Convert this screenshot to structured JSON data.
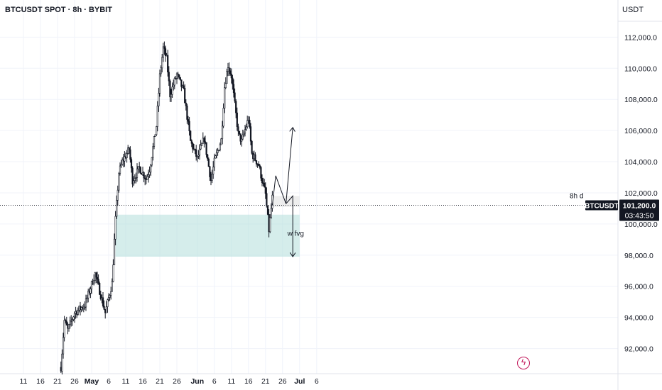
{
  "header": {
    "title": "BTCUSDT SPOT · 8h · BYBIT",
    "currency": "USDT"
  },
  "chart_data": {
    "type": "candlestick",
    "symbol": "BTCUSDT",
    "timeframe": "8h",
    "exchange": "BYBIT",
    "ylim": [
      90500,
      113000
    ],
    "y_ticks": [
      92000,
      94000,
      96000,
      98000,
      100000,
      102000,
      104000,
      106000,
      108000,
      110000,
      112000
    ],
    "y_tick_labels": [
      "92,000.0",
      "94,000.0",
      "96,000.0",
      "98,000.0",
      "100,000.0",
      "102,000.0",
      "104,000.0",
      "106,000.0",
      "108,000.0",
      "110,000.0",
      "112,000.0"
    ],
    "x_ticks": [
      {
        "label": "11",
        "date": "2025-04-11"
      },
      {
        "label": "16",
        "date": "2025-04-16"
      },
      {
        "label": "21",
        "date": "2025-04-21"
      },
      {
        "label": "26",
        "date": "2025-04-26"
      },
      {
        "label": "May",
        "date": "2025-05-01",
        "bold": true
      },
      {
        "label": "6",
        "date": "2025-05-06"
      },
      {
        "label": "11",
        "date": "2025-05-11"
      },
      {
        "label": "16",
        "date": "2025-05-16"
      },
      {
        "label": "21",
        "date": "2025-05-21"
      },
      {
        "label": "26",
        "date": "2025-05-26"
      },
      {
        "label": "Jun",
        "date": "2025-06-01",
        "bold": true
      },
      {
        "label": "6",
        "date": "2025-06-06"
      },
      {
        "label": "11",
        "date": "2025-06-11"
      },
      {
        "label": "16",
        "date": "2025-06-16"
      },
      {
        "label": "21",
        "date": "2025-06-21"
      },
      {
        "label": "26",
        "date": "2025-06-26"
      },
      {
        "label": "Jul",
        "date": "2025-07-01",
        "bold": true
      },
      {
        "label": "6",
        "date": "2025-07-06"
      }
    ],
    "price_path": [
      [
        "2025-04-22",
        90800
      ],
      [
        "2025-04-23",
        93800
      ],
      [
        "2025-04-24",
        93200
      ],
      [
        "2025-04-26",
        94300
      ],
      [
        "2025-04-29",
        94800
      ],
      [
        "2025-05-02",
        96800
      ],
      [
        "2025-05-03",
        96000
      ],
      [
        "2025-05-05",
        94300
      ],
      [
        "2025-05-07",
        96200
      ],
      [
        "2025-05-08",
        100300
      ],
      [
        "2025-05-09",
        103300
      ],
      [
        "2025-05-10",
        104000
      ],
      [
        "2025-05-12",
        104800
      ],
      [
        "2025-05-13",
        102800
      ],
      [
        "2025-05-15",
        103600
      ],
      [
        "2025-05-17",
        102900
      ],
      [
        "2025-05-18",
        103500
      ],
      [
        "2025-05-20",
        106300
      ],
      [
        "2025-05-21",
        109500
      ],
      [
        "2025-05-22",
        111300
      ],
      [
        "2025-05-23",
        110600
      ],
      [
        "2025-05-24",
        108300
      ],
      [
        "2025-05-26",
        109600
      ],
      [
        "2025-05-28",
        108500
      ],
      [
        "2025-05-30",
        105300
      ],
      [
        "2025-06-01",
        104200
      ],
      [
        "2025-06-03",
        105500
      ],
      [
        "2025-06-05",
        102800
      ],
      [
        "2025-06-06",
        104000
      ],
      [
        "2025-06-08",
        105400
      ],
      [
        "2025-06-09",
        108800
      ],
      [
        "2025-06-10",
        110200
      ],
      [
        "2025-06-11",
        109500
      ],
      [
        "2025-06-13",
        105800
      ],
      [
        "2025-06-14",
        105300
      ],
      [
        "2025-06-16",
        106800
      ],
      [
        "2025-06-17",
        104500
      ],
      [
        "2025-06-19",
        103800
      ],
      [
        "2025-06-20",
        102800
      ],
      [
        "2025-06-21",
        101900
      ],
      [
        "2025-06-22",
        99600
      ],
      [
        "2025-06-23",
        101700
      ]
    ],
    "current_price": {
      "symbol": "BTCUSDT",
      "value": 101200,
      "label": "101,200.0",
      "countdown": "03:43:50"
    },
    "zones": [
      {
        "name": "w fvg",
        "from_date": "2025-05-08",
        "to_date": "2025-07-01",
        "low": 97900,
        "high": 100600,
        "color": "#b2dfdb"
      },
      {
        "name": "8h d",
        "label": "8h d",
        "from_date": "2025-06-23",
        "to_date": "2025-07-01",
        "low": 101100,
        "high": 101800,
        "color": "#e0e0e0"
      }
    ],
    "projections": [
      {
        "points": [
          [
            "2025-06-23",
            101200
          ],
          [
            "2025-06-24",
            103100
          ],
          [
            "2025-06-27",
            101300
          ],
          [
            "2025-06-29",
            106200
          ]
        ],
        "arrow": true
      },
      {
        "points": [
          [
            "2025-06-27",
            101300
          ],
          [
            "2025-06-29",
            101800
          ],
          [
            "2025-06-29",
            97900
          ]
        ],
        "arrow": true
      }
    ],
    "annotations": [
      {
        "text": "w fvg"
      },
      {
        "text": "8h d"
      }
    ]
  }
}
